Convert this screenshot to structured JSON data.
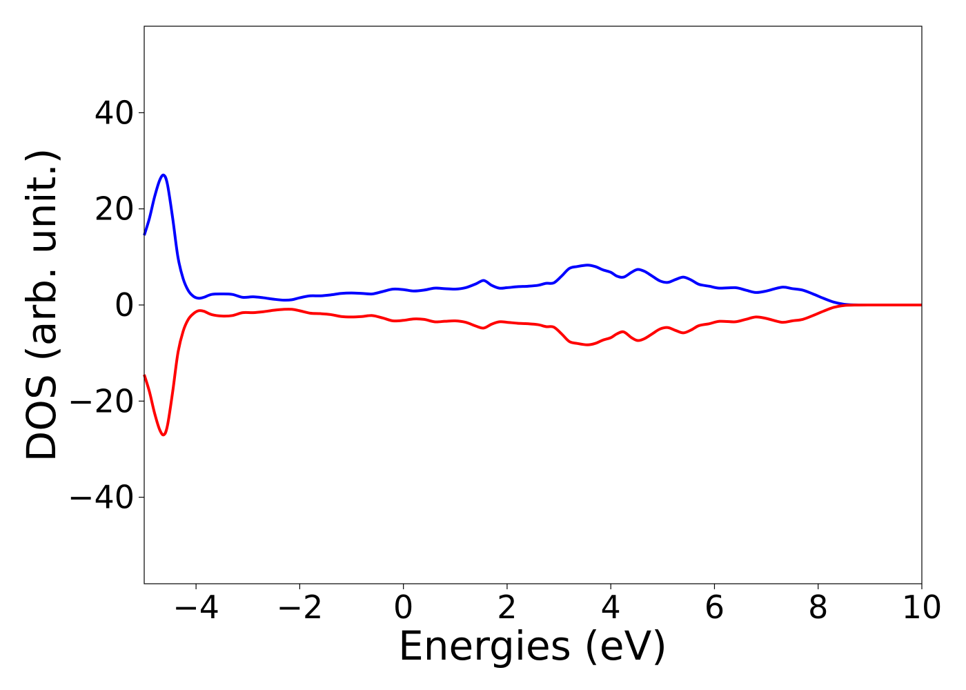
{
  "chart_data": {
    "type": "line",
    "title": "",
    "xlabel": "Energies (eV)",
    "ylabel": "DOS (arb. unit.)",
    "xlim": [
      -5,
      10
    ],
    "ylim": [
      -58,
      58
    ],
    "grid": false,
    "legend": "none",
    "xticks": [
      -4,
      -2,
      0,
      2,
      4,
      6,
      8,
      10
    ],
    "xtick_labels": [
      "−4",
      "−2",
      "0",
      "2",
      "4",
      "6",
      "8",
      "10"
    ],
    "yticks": [
      -40,
      -20,
      0,
      20,
      40
    ],
    "ytick_labels": [
      "−40",
      "−20",
      "0",
      "20",
      "40"
    ],
    "series": [
      {
        "color": "#0000ff",
        "x": [
          -5.0,
          -4.9,
          -4.8,
          -4.7,
          -4.62,
          -4.55,
          -4.45,
          -4.35,
          -4.25,
          -4.15,
          -4.05,
          -3.95,
          -3.85,
          -3.7,
          -3.5,
          -3.3,
          -3.1,
          -2.9,
          -2.7,
          -2.5,
          -2.3,
          -2.15,
          -2.0,
          -1.8,
          -1.6,
          -1.4,
          -1.2,
          -1.0,
          -0.8,
          -0.6,
          -0.4,
          -0.2,
          0.0,
          0.2,
          0.4,
          0.6,
          0.8,
          1.0,
          1.2,
          1.4,
          1.55,
          1.7,
          1.85,
          2.0,
          2.2,
          2.4,
          2.6,
          2.75,
          2.9,
          3.05,
          3.2,
          3.35,
          3.55,
          3.7,
          3.85,
          4.0,
          4.12,
          4.25,
          4.4,
          4.52,
          4.65,
          4.8,
          4.95,
          5.1,
          5.25,
          5.4,
          5.55,
          5.7,
          5.9,
          6.1,
          6.4,
          6.6,
          6.8,
          7.0,
          7.3,
          7.5,
          7.7,
          7.9,
          8.1,
          8.3,
          8.5,
          8.7,
          9.0,
          9.5,
          10.0
        ],
        "y": [
          14.5,
          18.0,
          22.5,
          26.0,
          27.0,
          25.0,
          18.0,
          10.0,
          5.5,
          3.0,
          1.8,
          1.4,
          1.6,
          2.2,
          2.3,
          2.2,
          1.6,
          1.7,
          1.5,
          1.2,
          1.0,
          1.1,
          1.5,
          1.9,
          1.9,
          2.1,
          2.4,
          2.5,
          2.4,
          2.3,
          2.8,
          3.3,
          3.2,
          2.9,
          3.1,
          3.5,
          3.4,
          3.3,
          3.6,
          4.4,
          5.1,
          4.1,
          3.5,
          3.6,
          3.8,
          3.9,
          4.1,
          4.5,
          4.6,
          6.0,
          7.6,
          8.0,
          8.3,
          8.0,
          7.3,
          6.8,
          6.0,
          5.8,
          6.8,
          7.4,
          7.0,
          6.0,
          5.0,
          4.7,
          5.3,
          5.8,
          5.2,
          4.3,
          3.9,
          3.5,
          3.6,
          3.1,
          2.6,
          2.9,
          3.7,
          3.4,
          3.1,
          2.3,
          1.4,
          0.6,
          0.15,
          0.02,
          0.0,
          0.0,
          0.0
        ]
      },
      {
        "color": "#ff0000",
        "x": [
          -5.0,
          -4.9,
          -4.8,
          -4.7,
          -4.62,
          -4.55,
          -4.45,
          -4.35,
          -4.25,
          -4.15,
          -4.05,
          -3.95,
          -3.85,
          -3.7,
          -3.5,
          -3.3,
          -3.1,
          -2.9,
          -2.7,
          -2.5,
          -2.3,
          -2.15,
          -2.0,
          -1.8,
          -1.6,
          -1.4,
          -1.2,
          -1.0,
          -0.8,
          -0.6,
          -0.4,
          -0.2,
          0.0,
          0.2,
          0.4,
          0.6,
          0.8,
          1.0,
          1.2,
          1.4,
          1.55,
          1.7,
          1.85,
          2.0,
          2.2,
          2.4,
          2.6,
          2.75,
          2.9,
          3.05,
          3.2,
          3.35,
          3.55,
          3.7,
          3.85,
          4.0,
          4.12,
          4.25,
          4.4,
          4.52,
          4.65,
          4.8,
          4.95,
          5.1,
          5.25,
          5.4,
          5.55,
          5.7,
          5.9,
          6.1,
          6.4,
          6.6,
          6.8,
          7.0,
          7.3,
          7.5,
          7.7,
          7.9,
          8.1,
          8.3,
          8.5,
          8.7,
          9.0,
          9.5,
          10.0
        ],
        "y": [
          -14.5,
          -18.0,
          -22.5,
          -26.0,
          -27.0,
          -25.0,
          -18.0,
          -10.0,
          -5.5,
          -3.0,
          -1.8,
          -1.2,
          -1.3,
          -2.0,
          -2.3,
          -2.2,
          -1.6,
          -1.6,
          -1.4,
          -1.1,
          -0.9,
          -0.9,
          -1.2,
          -1.7,
          -1.8,
          -2.0,
          -2.4,
          -2.5,
          -2.4,
          -2.2,
          -2.7,
          -3.3,
          -3.2,
          -2.9,
          -3.0,
          -3.5,
          -3.4,
          -3.3,
          -3.6,
          -4.4,
          -4.8,
          -4.0,
          -3.5,
          -3.6,
          -3.8,
          -3.9,
          -4.1,
          -4.5,
          -4.6,
          -6.0,
          -7.6,
          -8.0,
          -8.3,
          -8.0,
          -7.3,
          -6.8,
          -6.0,
          -5.6,
          -6.8,
          -7.4,
          -7.0,
          -6.0,
          -5.0,
          -4.7,
          -5.3,
          -5.8,
          -5.2,
          -4.3,
          -3.9,
          -3.4,
          -3.5,
          -3.0,
          -2.5,
          -2.8,
          -3.6,
          -3.3,
          -3.0,
          -2.2,
          -1.3,
          -0.5,
          -0.1,
          -0.02,
          0.0,
          0.0,
          0.0
        ]
      }
    ]
  }
}
